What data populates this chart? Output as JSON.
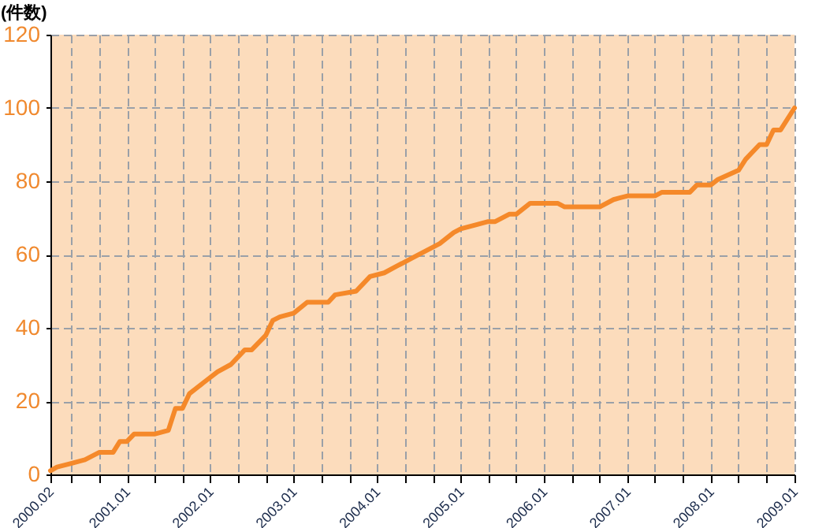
{
  "chart_data": {
    "type": "line",
    "ylabel": "(件数)",
    "x": [
      "2000-02",
      "2000-03",
      "2000-05",
      "2000-07",
      "2000-09",
      "2000-11",
      "2000-12",
      "2001-01",
      "2001-02",
      "2001-05",
      "2001-07",
      "2001-08",
      "2001-09",
      "2001-10",
      "2001-12",
      "2002-02",
      "2002-04",
      "2002-06",
      "2002-07",
      "2002-09",
      "2002-10",
      "2002-11",
      "2003-01",
      "2003-03",
      "2003-06",
      "2003-07",
      "2003-10",
      "2003-12",
      "2004-02",
      "2004-04",
      "2004-06",
      "2004-08",
      "2004-10",
      "2004-12",
      "2005-01",
      "2005-03",
      "2005-05",
      "2005-06",
      "2005-08",
      "2005-09",
      "2005-11",
      "2006-03",
      "2006-04",
      "2006-09",
      "2006-11",
      "2006-12",
      "2007-01",
      "2007-05",
      "2007-06",
      "2007-10",
      "2007-11",
      "2008-01",
      "2008-02",
      "2008-05",
      "2008-06",
      "2008-08",
      "2008-09",
      "2008-10",
      "2008-11",
      "2009-01"
    ],
    "series": [
      {
        "color": "#f5892a",
        "values": [
          1,
          2,
          3,
          4,
          6,
          6,
          9,
          9,
          11,
          11,
          12,
          18,
          18,
          22,
          25,
          28,
          30,
          34,
          34,
          38,
          42,
          43,
          44,
          47,
          47,
          49,
          50,
          54,
          55,
          57,
          59,
          61,
          63,
          66,
          67,
          68,
          69,
          69,
          71,
          71,
          74,
          74,
          73,
          73,
          75,
          75.5,
          76,
          76,
          77,
          77,
          79,
          79,
          80.5,
          83,
          86,
          90,
          90,
          94,
          94,
          100
        ]
      }
    ],
    "xlim": [
      "2000-02",
      "2009-01"
    ],
    "xticks": [
      {
        "value": "2000-02",
        "label": "2000.02"
      },
      {
        "value": "2000-05",
        "label": null
      },
      {
        "value": "2000-09",
        "label": null
      },
      {
        "value": "2001-01",
        "label": "2001.01"
      },
      {
        "value": "2001-05",
        "label": null
      },
      {
        "value": "2001-09",
        "label": null
      },
      {
        "value": "2002-01",
        "label": "2002.01"
      },
      {
        "value": "2002-05",
        "label": null
      },
      {
        "value": "2002-09",
        "label": null
      },
      {
        "value": "2003-01",
        "label": "2003.01"
      },
      {
        "value": "2003-05",
        "label": null
      },
      {
        "value": "2003-09",
        "label": null
      },
      {
        "value": "2004-01",
        "label": "2004.01"
      },
      {
        "value": "2004-05",
        "label": null
      },
      {
        "value": "2004-09",
        "label": null
      },
      {
        "value": "2005-01",
        "label": "2005.01"
      },
      {
        "value": "2005-05",
        "label": null
      },
      {
        "value": "2005-09",
        "label": null
      },
      {
        "value": "2006-01",
        "label": "2006.01"
      },
      {
        "value": "2006-05",
        "label": null
      },
      {
        "value": "2006-09",
        "label": null
      },
      {
        "value": "2007-01",
        "label": "2007.01"
      },
      {
        "value": "2007-05",
        "label": null
      },
      {
        "value": "2007-09",
        "label": null
      },
      {
        "value": "2008-01",
        "label": "2008.01"
      },
      {
        "value": "2008-05",
        "label": null
      },
      {
        "value": "2008-09",
        "label": null
      },
      {
        "value": "2009-01",
        "label": "2009.01"
      }
    ],
    "ylim": [
      0,
      120
    ],
    "yticks": [
      0,
      20,
      40,
      60,
      80,
      100,
      120
    ],
    "grid": true,
    "marker": "none",
    "line_style": "solid"
  }
}
